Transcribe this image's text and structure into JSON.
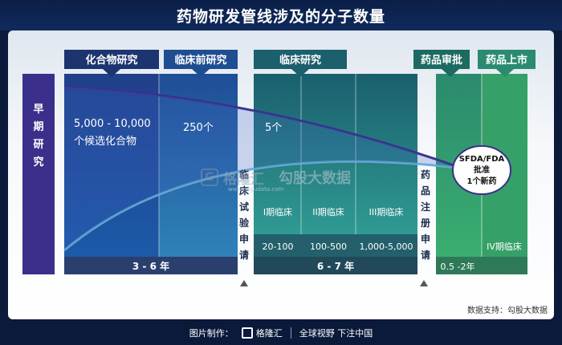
{
  "title": "药物研发管线涉及的分子数量",
  "early_research": "早期研究",
  "stages": {
    "compound": "化合物研究",
    "preclinical": "临床前研究",
    "clinical": "临床研究",
    "approval": "药品审批",
    "market": "药品上市"
  },
  "molecules": {
    "compound": "5,000 - 10,000",
    "compound_sub": "个候选化合物",
    "preclinical": "250个",
    "clinical": "5个"
  },
  "approval_bubble": [
    "SFDA/FDA",
    "批准",
    "1个新药"
  ],
  "trial_application": "临床试验申请",
  "drug_registration": "药品注册申请",
  "phases": [
    "I期临床",
    "II期临床",
    "III期临床"
  ],
  "phase_counts": [
    "20-100",
    "100-500",
    "1,000-5,000"
  ],
  "phase4": "IV期临床",
  "durations": {
    "early": "3 - 6 年",
    "clinical": "6 - 7 年",
    "approval": "0.5 -2年"
  },
  "watermark": {
    "brand": "格隆汇",
    "sub": "勾股大数据",
    "url": "www.gogudata.com",
    "glyph": "G"
  },
  "source": "数据支持：勾股大数据",
  "footer": {
    "made_by": "图片制作：",
    "brand": "格隆汇",
    "slogan": "全球视野 下注中国"
  },
  "colors": {
    "navy": "#1c3470",
    "blue_mid": "#2454a4",
    "teal_dark": "#1c5f6d",
    "teal": "#2a8b86",
    "green": "#35a067",
    "purple": "#3a2f8a"
  }
}
